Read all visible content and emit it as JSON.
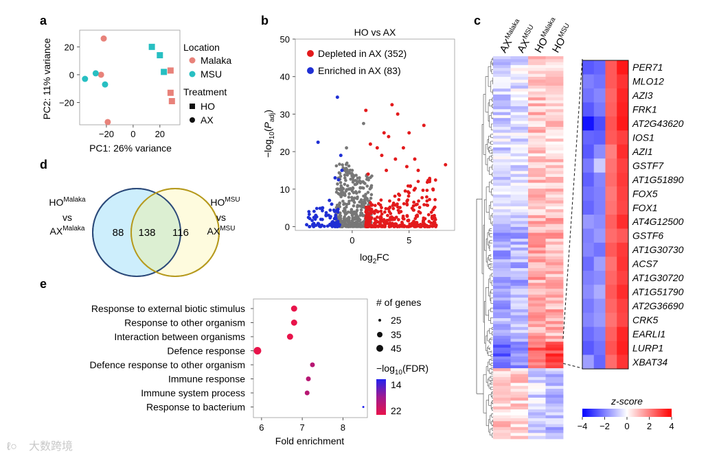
{
  "panel_labels": {
    "a": "a",
    "b": "b",
    "c": "c",
    "d": "d",
    "e": "e"
  },
  "colors": {
    "malaka": "#e8827a",
    "msu": "#27bfc2",
    "depleted": "#e31a1c",
    "enriched": "#1f2fd4",
    "ns": "#777777"
  },
  "chart_data": [
    {
      "id": "pca",
      "type": "scatter",
      "xlabel": "PC1: 26% variance",
      "ylabel": "PC2: 11% variance",
      "xticks": [
        "−20",
        "0",
        "20"
      ],
      "yticks": [
        "20",
        "0",
        "−20"
      ],
      "xlim": [
        -40,
        35
      ],
      "ylim": [
        -36,
        32
      ],
      "legend": {
        "location_title": "Location",
        "location_items": [
          "Malaka",
          "MSU"
        ],
        "treatment_title": "Treatment",
        "treatment_items": [
          "HO",
          "AX"
        ]
      },
      "points": [
        {
          "x": -22,
          "y": 26,
          "location": "Malaka",
          "treatment": "AX"
        },
        {
          "x": -24,
          "y": 0,
          "location": "Malaka",
          "treatment": "AX"
        },
        {
          "x": -19,
          "y": -34,
          "location": "Malaka",
          "treatment": "AX"
        },
        {
          "x": -28,
          "y": 1,
          "location": "MSU",
          "treatment": "AX"
        },
        {
          "x": -36,
          "y": -3,
          "location": "MSU",
          "treatment": "AX"
        },
        {
          "x": -21,
          "y": -7,
          "location": "MSU",
          "treatment": "AX"
        },
        {
          "x": 14,
          "y": 20,
          "location": "MSU",
          "treatment": "HO"
        },
        {
          "x": 20,
          "y": 14,
          "location": "MSU",
          "treatment": "HO"
        },
        {
          "x": 23,
          "y": 2,
          "location": "MSU",
          "treatment": "HO"
        },
        {
          "x": 28,
          "y": 3,
          "location": "Malaka",
          "treatment": "HO"
        },
        {
          "x": 28,
          "y": -13,
          "location": "Malaka",
          "treatment": "HO"
        },
        {
          "x": 29,
          "y": -19,
          "location": "Malaka",
          "treatment": "HO"
        }
      ]
    },
    {
      "id": "volcano",
      "type": "scatter",
      "title": "HO vs AX",
      "xlabel_main": "log",
      "xlabel_sub": "2",
      "xlabel_tail": "FC",
      "ylabel_pre": "−log",
      "ylabel_sub": "10",
      "ylabel_mid": "(",
      "ylabel_p": "P",
      "ylabel_psub": "adj",
      "ylabel_end": ")",
      "xticks": [
        "0",
        "5"
      ],
      "yticks": [
        "0",
        "10",
        "20",
        "30",
        "40",
        "50"
      ],
      "xlim": [
        -5,
        9
      ],
      "ylim": [
        -1,
        50
      ],
      "legend": [
        "Depleted in AX (352)",
        "Enriched in AX (83)"
      ],
      "depleted_points": [
        [
          1.2,
          31
        ],
        [
          3.5,
          32.5
        ],
        [
          2.8,
          25
        ],
        [
          4.0,
          30
        ],
        [
          6.3,
          27
        ],
        [
          3.2,
          24
        ],
        [
          5.0,
          25
        ],
        [
          8.2,
          16.5
        ],
        [
          4.5,
          21
        ],
        [
          2.2,
          21
        ],
        [
          3.8,
          18
        ],
        [
          1.6,
          22
        ],
        [
          5.5,
          18
        ],
        [
          2.6,
          19
        ],
        [
          6.8,
          12
        ],
        [
          7.1,
          10
        ],
        [
          4.8,
          16
        ],
        [
          3.0,
          15
        ],
        [
          1.4,
          14
        ],
        [
          5.8,
          15
        ]
      ],
      "enriched_points": [
        [
          -1.3,
          34.5
        ],
        [
          -3.0,
          22.5
        ],
        [
          -1.0,
          19
        ],
        [
          -0.9,
          15
        ],
        [
          -1.5,
          13
        ],
        [
          -2.0,
          7
        ],
        [
          -1.2,
          12.5
        ],
        [
          -2.6,
          5
        ],
        [
          -1.8,
          6
        ],
        [
          -3.2,
          3
        ],
        [
          -4.0,
          0.5
        ]
      ],
      "ns_points": [
        [
          1.0,
          27.5
        ],
        [
          -0.5,
          21
        ],
        [
          0.0,
          15
        ],
        [
          0.5,
          12
        ],
        [
          -0.3,
          10
        ]
      ]
    },
    {
      "id": "heatmap",
      "type": "heatmap",
      "columns": [
        {
          "main": "AX",
          "sup": "Malaka"
        },
        {
          "main": "AX",
          "sup": "MSU"
        },
        {
          "main": "HO",
          "sup": "Malaka"
        },
        {
          "main": "HO",
          "sup": "MSU"
        }
      ],
      "genes": [
        "PER71",
        "MLO12",
        "AZI3",
        "FRK1",
        "AT2G43620",
        "IOS1",
        "AZI1",
        "GSTF7",
        "AT1G51890",
        "FOX5",
        "FOX1",
        "AT4G12500",
        "GSTF6",
        "AT1G30730",
        "ACS7",
        "AT1G30720",
        "AT1G51790",
        "AT2G36690",
        "CRK5",
        "EARLI1",
        "LURP1",
        "XBAT34"
      ],
      "zoom_values": [
        [
          -2.6,
          -2.4,
          2.6,
          3.6
        ],
        [
          -2.0,
          -2.2,
          2.6,
          3.2
        ],
        [
          -2.2,
          -1.9,
          2.4,
          3.4
        ],
        [
          -2.6,
          -2.1,
          2.5,
          3.5
        ],
        [
          -3.7,
          -2.8,
          2.7,
          3.6
        ],
        [
          -2.4,
          -2.5,
          2.6,
          3.0
        ],
        [
          -2.6,
          -1.8,
          2.0,
          3.3
        ],
        [
          -2.1,
          -0.8,
          2.2,
          3.0
        ],
        [
          -2.5,
          -1.9,
          2.3,
          3.1
        ],
        [
          -2.2,
          -2.0,
          2.1,
          3.0
        ],
        [
          -2.4,
          -2.0,
          2.2,
          2.9
        ],
        [
          -1.6,
          -1.8,
          2.5,
          3.3
        ],
        [
          -2.0,
          -1.6,
          2.3,
          2.6
        ],
        [
          -1.9,
          -2.2,
          2.6,
          3.1
        ],
        [
          -2.3,
          -1.5,
          2.2,
          3.2
        ],
        [
          -2.0,
          -1.8,
          2.4,
          3.0
        ],
        [
          -1.8,
          -1.3,
          2.6,
          3.3
        ],
        [
          -2.1,
          -1.7,
          2.4,
          3.0
        ],
        [
          -1.9,
          -1.6,
          2.2,
          2.9
        ],
        [
          -2.3,
          -2.0,
          2.5,
          3.4
        ],
        [
          -2.6,
          -2.2,
          2.7,
          3.5
        ],
        [
          -1.5,
          -2.4,
          2.3,
          3.2
        ]
      ],
      "colorbar": {
        "title": "z-score",
        "ticks": [
          "−4",
          "−2",
          "0",
          "2",
          "4"
        ],
        "range": [
          -4,
          4
        ]
      }
    },
    {
      "id": "venn",
      "type": "venn",
      "left_label": {
        "top": "HO",
        "top_sup": "Malaka",
        "mid": "vs",
        "bot": "AX",
        "bot_sup": "Malaka"
      },
      "right_label": {
        "top": "HO",
        "top_sup": "MSU",
        "mid": "vs",
        "bot": "AX",
        "bot_sup": "MSU"
      },
      "values": {
        "left_only": 88,
        "both": 138,
        "right_only": 116
      }
    },
    {
      "id": "go",
      "type": "scatter",
      "xlabel": "Fold enrichment",
      "xticks": [
        "6",
        "7",
        "8"
      ],
      "xlim": [
        5.8,
        8.6
      ],
      "categories": [
        "Response to external biotic stimulus",
        "Response to other organism",
        "Interaction between organisms",
        "Defence response",
        "Defence response to other organism",
        "Immune response",
        "Immune system process",
        "Response to bacterium"
      ],
      "fold_enrichment": [
        6.8,
        6.8,
        6.7,
        5.9,
        7.25,
        7.15,
        7.12,
        8.5
      ],
      "n_genes": [
        40,
        40,
        40,
        45,
        35,
        35,
        35,
        25
      ],
      "neglog10_fdr": [
        22,
        22,
        22,
        22,
        20,
        20,
        20,
        14
      ],
      "size_legend": {
        "title": "# of genes",
        "values": [
          "25",
          "35",
          "45"
        ]
      },
      "color_legend": {
        "title_main": "−log",
        "title_sub": "10",
        "title_tail": "(FDR)",
        "ticks": [
          "14",
          "22"
        ]
      }
    }
  ],
  "watermark": "大数跨境"
}
